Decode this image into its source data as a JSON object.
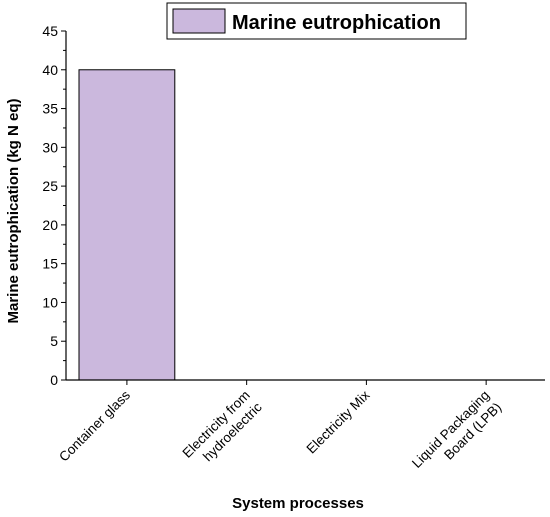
{
  "chart_data": {
    "type": "bar",
    "categories": [
      "Container glass",
      "Electricity from hydroelectric",
      "Electricity Mix",
      "Liquid Packaging Board (LPB)"
    ],
    "category_lines": [
      [
        "Container glass"
      ],
      [
        "Electricity from",
        "hydroelectric"
      ],
      [
        "Electricity Mix"
      ],
      [
        "Liquid Packaging",
        "Board (LPB)"
      ]
    ],
    "series": [
      {
        "name": "Marine eutrophication",
        "values": [
          40,
          0,
          0,
          0
        ],
        "color": "#cbb8dd"
      }
    ],
    "title": "",
    "xlabel": "System processes",
    "ylabel": "Marine eutrophication (kg N eq)",
    "ylim": [
      0,
      45
    ],
    "yticks": [
      0,
      5,
      10,
      15,
      20,
      25,
      30,
      35,
      40,
      45
    ],
    "grid": false,
    "legend_position": "top-right",
    "bar_outline_color": "#000000"
  }
}
